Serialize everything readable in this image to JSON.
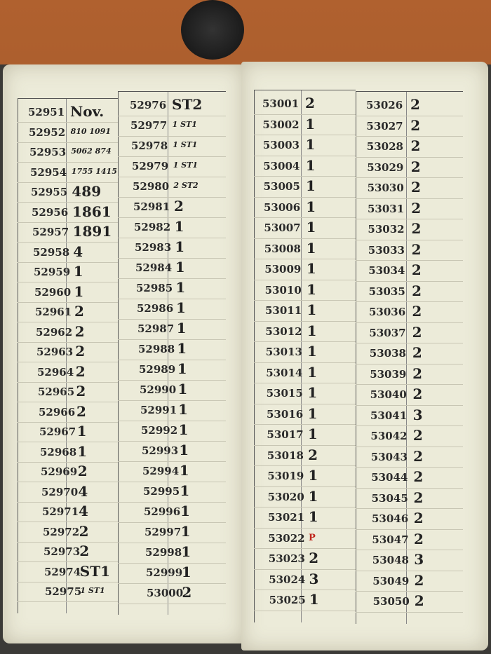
{
  "pages": [
    {
      "columns": [
        {
          "rows": [
            [
              "52951",
              "Nov."
            ],
            [
              "52952",
              "810 1091"
            ],
            [
              "52953",
              "5062 874"
            ],
            [
              "52954",
              "1755 1415"
            ],
            [
              "52955",
              "489"
            ],
            [
              "52956",
              "1861"
            ],
            [
              "52957",
              "1891"
            ],
            [
              "52958",
              "4"
            ],
            [
              "52959",
              "1"
            ],
            [
              "52960",
              "1"
            ],
            [
              "52961",
              "2"
            ],
            [
              "52962",
              "2"
            ],
            [
              "52963",
              "2"
            ],
            [
              "52964",
              "2"
            ],
            [
              "52965",
              "2"
            ],
            [
              "52966",
              "2"
            ],
            [
              "52967",
              "1"
            ],
            [
              "52968",
              "1"
            ],
            [
              "52969",
              "2"
            ],
            [
              "52970",
              "4"
            ],
            [
              "52971",
              "4"
            ],
            [
              "52972",
              "2"
            ],
            [
              "52973",
              "2"
            ],
            [
              "52974",
              "ST1"
            ],
            [
              "52975",
              "1 ST1"
            ]
          ]
        },
        {
          "rows": [
            [
              "52976",
              "ST2"
            ],
            [
              "52977",
              "1 ST1"
            ],
            [
              "52978",
              "1 ST1"
            ],
            [
              "52979",
              "1 ST1"
            ],
            [
              "52980",
              "2 ST2"
            ],
            [
              "52981",
              "2"
            ],
            [
              "52982",
              "1"
            ],
            [
              "52983",
              "1"
            ],
            [
              "52984",
              "1"
            ],
            [
              "52985",
              "1"
            ],
            [
              "52986",
              "1"
            ],
            [
              "52987",
              "1"
            ],
            [
              "52988",
              "1"
            ],
            [
              "52989",
              "1"
            ],
            [
              "52990",
              "1"
            ],
            [
              "52991",
              "1"
            ],
            [
              "52992",
              "1"
            ],
            [
              "52993",
              "1"
            ],
            [
              "52994",
              "1"
            ],
            [
              "52995",
              "1"
            ],
            [
              "52996",
              "1"
            ],
            [
              "52997",
              "1"
            ],
            [
              "52998",
              "1"
            ],
            [
              "52999",
              "1"
            ],
            [
              "53000",
              "2"
            ]
          ]
        }
      ]
    },
    {
      "columns": [
        {
          "rows": [
            [
              "53001",
              "2"
            ],
            [
              "53002",
              "1"
            ],
            [
              "53003",
              "1"
            ],
            [
              "53004",
              "1"
            ],
            [
              "53005",
              "1"
            ],
            [
              "53006",
              "1"
            ],
            [
              "53007",
              "1"
            ],
            [
              "53008",
              "1"
            ],
            [
              "53009",
              "1"
            ],
            [
              "53010",
              "1"
            ],
            [
              "53011",
              "1"
            ],
            [
              "53012",
              "1"
            ],
            [
              "53013",
              "1"
            ],
            [
              "53014",
              "1"
            ],
            [
              "53015",
              "1"
            ],
            [
              "53016",
              "1"
            ],
            [
              "53017",
              "1"
            ],
            [
              "53018",
              "2"
            ],
            [
              "53019",
              "1"
            ],
            [
              "53020",
              "1"
            ],
            [
              "53021",
              "1"
            ],
            [
              "53022",
              "P"
            ],
            [
              "53023",
              "2"
            ],
            [
              "53024",
              "3"
            ],
            [
              "53025",
              "1"
            ]
          ]
        },
        {
          "rows": [
            [
              "53026",
              "2"
            ],
            [
              "53027",
              "2"
            ],
            [
              "53028",
              "2"
            ],
            [
              "53029",
              "2"
            ],
            [
              "53030",
              "2"
            ],
            [
              "53031",
              "2"
            ],
            [
              "53032",
              "2"
            ],
            [
              "53033",
              "2"
            ],
            [
              "53034",
              "2"
            ],
            [
              "53035",
              "2"
            ],
            [
              "53036",
              "2"
            ],
            [
              "53037",
              "2"
            ],
            [
              "53038",
              "2"
            ],
            [
              "53039",
              "2"
            ],
            [
              "53040",
              "2"
            ],
            [
              "53041",
              "3"
            ],
            [
              "53042",
              "2"
            ],
            [
              "53043",
              "2"
            ],
            [
              "53044",
              "2"
            ],
            [
              "53045",
              "2"
            ],
            [
              "53046",
              "2"
            ],
            [
              "53047",
              "2"
            ],
            [
              "53048",
              "3"
            ],
            [
              "53049",
              "2"
            ],
            [
              "53050",
              "2"
            ]
          ]
        }
      ]
    }
  ]
}
